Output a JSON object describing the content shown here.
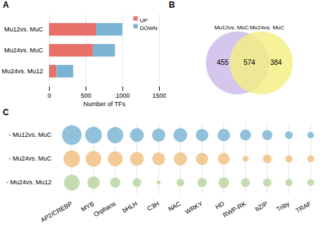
{
  "chart_data": [
    {
      "type": "bar",
      "title": "A",
      "orientation": "horizontal",
      "stacked": true,
      "categories": [
        "Mu24vs. Mu12",
        "Mu24vs. MuC",
        "Mu12vs. MuC"
      ],
      "series": [
        {
          "name": "UP",
          "color": "#e87068",
          "values": [
            100,
            600,
            640
          ]
        },
        {
          "name": "DOWN",
          "color": "#7ab3d4",
          "values": [
            230,
            300,
            360
          ]
        }
      ],
      "xlabel": "Number of TFs",
      "xlim": [
        0,
        1500
      ],
      "xticks": [
        0,
        500,
        1000,
        1500
      ],
      "grid": true,
      "legend": "upper right"
    },
    {
      "type": "venn",
      "title": "B",
      "series": [
        {
          "name": "Mu12vs. MuC",
          "color": "#c9b8e8",
          "value": 455
        },
        {
          "name": "Mu24vs. MuC",
          "color": "#f2ef80",
          "value": 384
        }
      ],
      "overlap_value": 574
    },
    {
      "type": "bubble",
      "title": "C",
      "categories": [
        "AP2/CREBP",
        "MYB",
        "Orphans",
        "bHLH",
        "C3H",
        "NAC",
        "WRKY",
        "HD",
        "RWP-RK",
        "bZIP",
        "Triby",
        "TRAF"
      ],
      "series": [
        {
          "name": "- Mu12vs. MuC",
          "color": "#7ab3d4",
          "sizes": [
            2200,
            1600,
            1500,
            1100,
            1000,
            1100,
            900,
            900,
            700,
            600,
            350,
            250
          ]
        },
        {
          "name": "- Mu24vs. MuC",
          "color": "#f0c080",
          "sizes": [
            1600,
            1400,
            1300,
            1100,
            950,
            1000,
            850,
            800,
            200,
            450,
            300,
            280
          ]
        },
        {
          "name": "- Mu24vs. Mu12",
          "color": "#b8d4a0",
          "sizes": [
            1400,
            900,
            600,
            450,
            80,
            350,
            500,
            650,
            450,
            420,
            300,
            280
          ]
        }
      ],
      "grid": true
    }
  ]
}
